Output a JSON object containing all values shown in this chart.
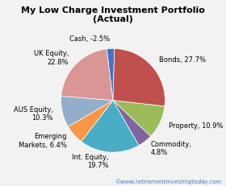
{
  "title": "My Low Charge Investment Portfolio\n(Actual)",
  "slices": [
    {
      "label": "Cash, -2.5%",
      "value": 2.5,
      "color": "#4472C4"
    },
    {
      "label": "Bonds, 27.7%",
      "value": 27.7,
      "color": "#C0504D"
    },
    {
      "label": "Property, 10.9%",
      "value": 10.9,
      "color": "#9BBB59"
    },
    {
      "label": "Commodity,\n4.8%",
      "value": 4.8,
      "color": "#8064A2"
    },
    {
      "label": "Int. Equity,\n19.7%",
      "value": 19.7,
      "color": "#4BACC6"
    },
    {
      "label": "Emerging\nMarkets, 6.4%",
      "value": 6.4,
      "color": "#F79646"
    },
    {
      "label": "AUS Equity,\n10.3%",
      "value": 10.3,
      "color": "#92AECB"
    },
    {
      "label": "UK Equity,\n22.8%",
      "value": 22.8,
      "color": "#D99694"
    }
  ],
  "watermark": "©www.retirementinvestingtoday.com",
  "bg_color": "#F2F2F2",
  "title_fontsize": 8,
  "label_fontsize": 6,
  "watermark_fontsize": 5
}
